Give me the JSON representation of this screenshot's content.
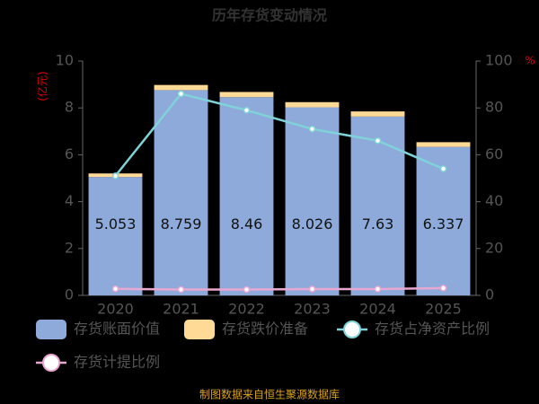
{
  "chart_data": {
    "type": "bar",
    "title": "历年存货变动情况",
    "y_label": "(亿元)",
    "y2_label": "%",
    "categories": [
      "2020",
      "2021",
      "2022",
      "2023",
      "2024",
      "2025"
    ],
    "stacked": true,
    "series": [
      {
        "name": "存货账面价值",
        "color": "#8eaadb",
        "values": [
          5.053,
          8.759,
          8.46,
          8.026,
          7.63,
          6.337
        ],
        "data_labels": true
      },
      {
        "name": "存货跌价准备",
        "color": "#ffd996",
        "values": [
          0.15,
          0.22,
          0.22,
          0.22,
          0.22,
          0.2
        ]
      },
      {
        "name": "存货占净资产比例",
        "type": "line",
        "axis": "y2",
        "color": "#7fd3d8",
        "values": [
          51,
          86,
          79,
          71,
          66,
          54
        ]
      },
      {
        "name": "存货计提比例",
        "type": "line",
        "axis": "y2",
        "color": "#e8a7d0",
        "values": [
          2.8,
          2.5,
          2.5,
          2.7,
          2.7,
          3.1
        ]
      }
    ],
    "ylim": [
      0,
      10
    ],
    "yticks": [
      0,
      2,
      4,
      6,
      8,
      10
    ],
    "y2lim": [
      0,
      100
    ],
    "y2ticks": [
      0,
      20,
      40,
      60,
      80,
      100
    ],
    "source": "制图数据来自恒生聚源数据库"
  }
}
